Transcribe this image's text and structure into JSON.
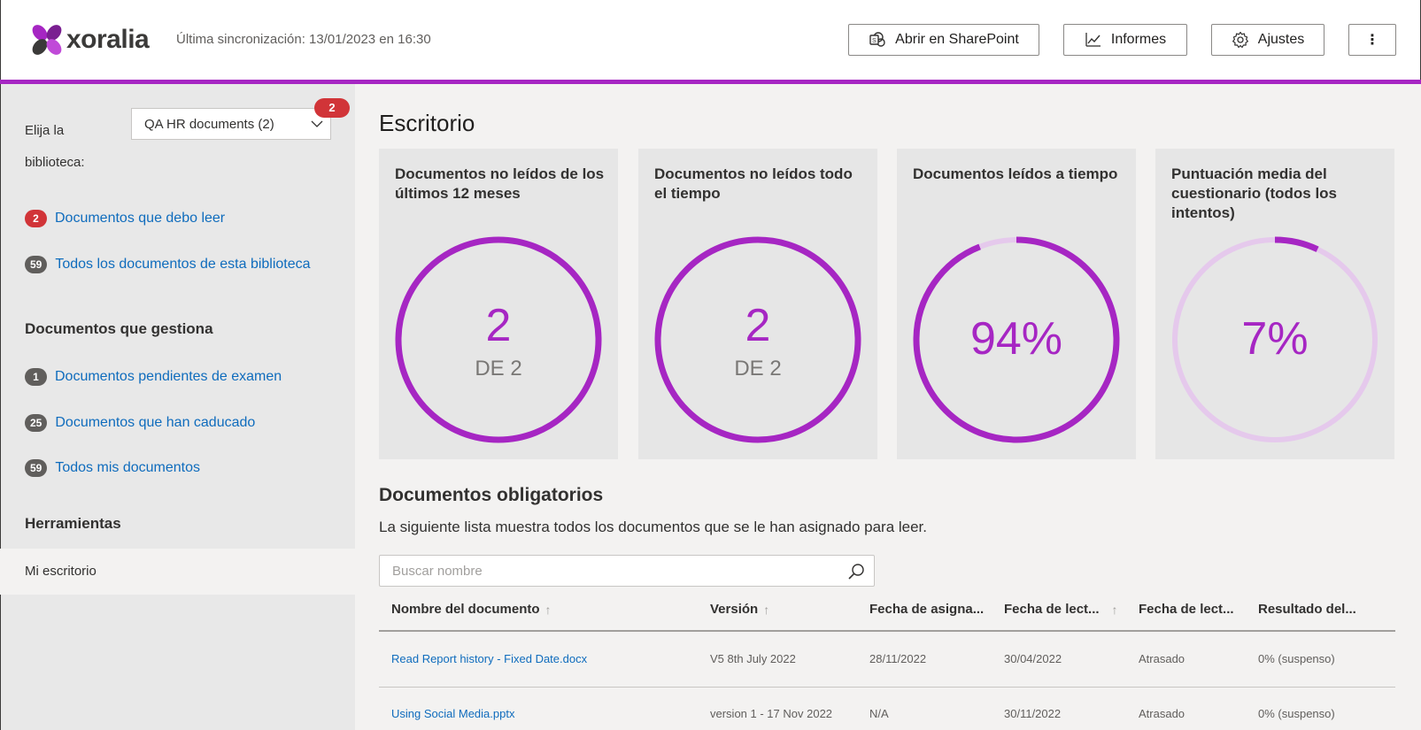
{
  "header": {
    "logo_text": "xoralia",
    "sync_text": "Última sincronización: 13/01/2023 en 16:30",
    "buttons": {
      "sharepoint": "Abrir en SharePoint",
      "informes": "Informes",
      "ajustes": "Ajustes",
      "more": "⋮"
    }
  },
  "sidebar": {
    "library_label": "Elija la biblioteca:",
    "library_selected": "QA HR documents (2)",
    "library_badge": "2",
    "links": [
      {
        "count": "2",
        "label": "Documentos que debo leer",
        "badge_color": "#d13438"
      },
      {
        "count": "59",
        "label": "Todos los documentos de esta biblioteca",
        "badge_color": "#605e5c"
      }
    ],
    "manage_heading": "Documentos que gestiona",
    "manage_links": [
      {
        "count": "1",
        "label": "Documentos pendientes de examen"
      },
      {
        "count": "25",
        "label": "Documentos que han caducado"
      },
      {
        "count": "59",
        "label": "Todos mis documentos"
      }
    ],
    "tools_heading": "Herramientas",
    "tools_item": "Mi escritorio"
  },
  "main": {
    "title": "Escritorio",
    "cards": [
      {
        "title": "Documentos no leídos de los últimos 12 meses",
        "big": "2",
        "sub": "DE 2",
        "progress": 1.0
      },
      {
        "title": "Documentos no leídos todo el tiempo",
        "big": "2",
        "sub": "DE 2",
        "progress": 1.0
      },
      {
        "title": "Documentos leídos a tiempo",
        "big": "94%",
        "sub": "",
        "progress": 0.94
      },
      {
        "title": "Puntuación media del cuestionario (todos los intentos)",
        "big": "7%",
        "sub": "",
        "progress": 0.07
      }
    ],
    "colors": {
      "accent": "#a626c3",
      "track": "#e5c9ec"
    },
    "section_title": "Documentos obligatorios",
    "section_desc": "La siguiente lista muestra todos los documentos que se le han asignado para leer.",
    "search_placeholder": "Buscar nombre",
    "table": {
      "headers": [
        "Nombre del documento",
        "Versión",
        "Fecha de asigna...",
        "Fecha de lect...",
        "Fecha de lect...",
        "Resultado del..."
      ],
      "rows": [
        [
          "Read Report history - Fixed Date.docx",
          "V5 8th July 2022",
          "28/11/2022",
          "30/04/2022",
          "Atrasado",
          "0% (suspenso)"
        ],
        [
          "Using Social Media.pptx",
          "version 1 - 17 Nov 2022",
          "N/A",
          "30/11/2022",
          "Atrasado",
          "0% (suspenso)"
        ]
      ]
    }
  }
}
